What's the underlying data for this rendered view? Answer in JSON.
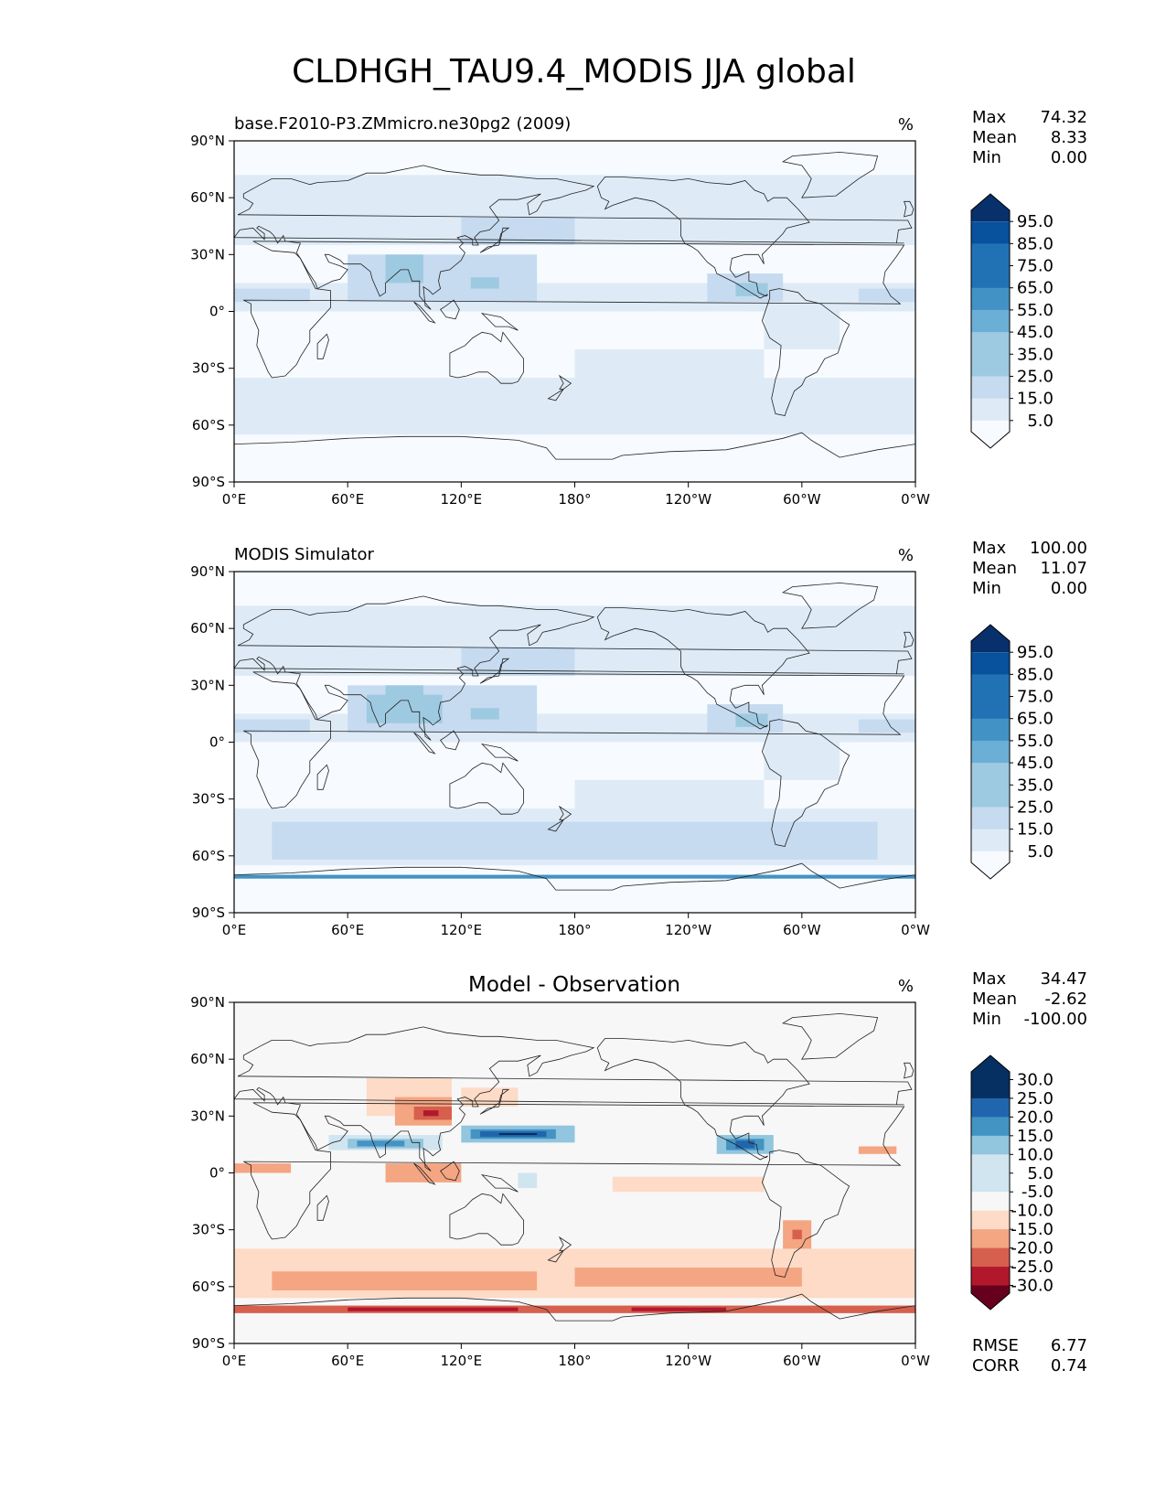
{
  "figure": {
    "title": "CLDHGH_TAU9.4_MODIS JJA global"
  },
  "axes": {
    "lat_ticks": [
      "90°N",
      "60°N",
      "30°N",
      "0°",
      "30°S",
      "60°S",
      "90°S"
    ],
    "lon_ticks": [
      "0°E",
      "60°E",
      "120°E",
      "180°",
      "120°W",
      "60°W",
      "0°W"
    ]
  },
  "panels": [
    {
      "id": "model",
      "left_title": "base.F2010-P3.ZMmicro.ne30pg2 (2009)",
      "center_title": "",
      "units": "%",
      "stats": {
        "labels": [
          "Max",
          "Mean",
          "Min"
        ],
        "values": [
          "74.32",
          "8.33",
          "0.00"
        ]
      },
      "colorbar": {
        "labels": [
          "95.0",
          "85.0",
          "75.0",
          "65.0",
          "55.0",
          "45.0",
          "35.0",
          "25.0",
          "15.0",
          "5.0"
        ]
      }
    },
    {
      "id": "obs",
      "left_title": "MODIS Simulator",
      "center_title": "",
      "units": "%",
      "stats": {
        "labels": [
          "Max",
          "Mean",
          "Min"
        ],
        "values": [
          "100.00",
          "11.07",
          "0.00"
        ]
      },
      "colorbar": {
        "labels": [
          "95.0",
          "85.0",
          "75.0",
          "65.0",
          "55.0",
          "45.0",
          "35.0",
          "25.0",
          "15.0",
          "5.0"
        ]
      }
    },
    {
      "id": "diff",
      "left_title": "",
      "center_title": "Model - Observation",
      "units": "%",
      "stats": {
        "labels": [
          "Max",
          "Mean",
          "Min"
        ],
        "values": [
          "34.47",
          "-2.62",
          "-100.00"
        ]
      },
      "colorbar": {
        "labels": [
          "30.0",
          "25.0",
          "20.0",
          "15.0",
          "10.0",
          "5.0",
          "-5.0",
          "-10.0",
          "-15.0",
          "-20.0",
          "-25.0",
          "-30.0"
        ]
      },
      "metrics": {
        "labels": [
          "RMSE",
          "CORR"
        ],
        "values": [
          "6.77",
          "0.74"
        ]
      }
    }
  ],
  "colors": {
    "seq": [
      "#f7fbff",
      "#deebf7",
      "#c6dbef",
      "#9ecae1",
      "#6baed6",
      "#4292c6",
      "#2171b5",
      "#08519c",
      "#08306b"
    ],
    "div_pos": [
      "#d1e5f0",
      "#92c5de",
      "#4393c3",
      "#2166ac",
      "#053061"
    ],
    "div_neg": [
      "#fddbc7",
      "#f4a582",
      "#d6604d",
      "#b2182b",
      "#67001f"
    ],
    "neutral": "#f7f7f7"
  }
}
